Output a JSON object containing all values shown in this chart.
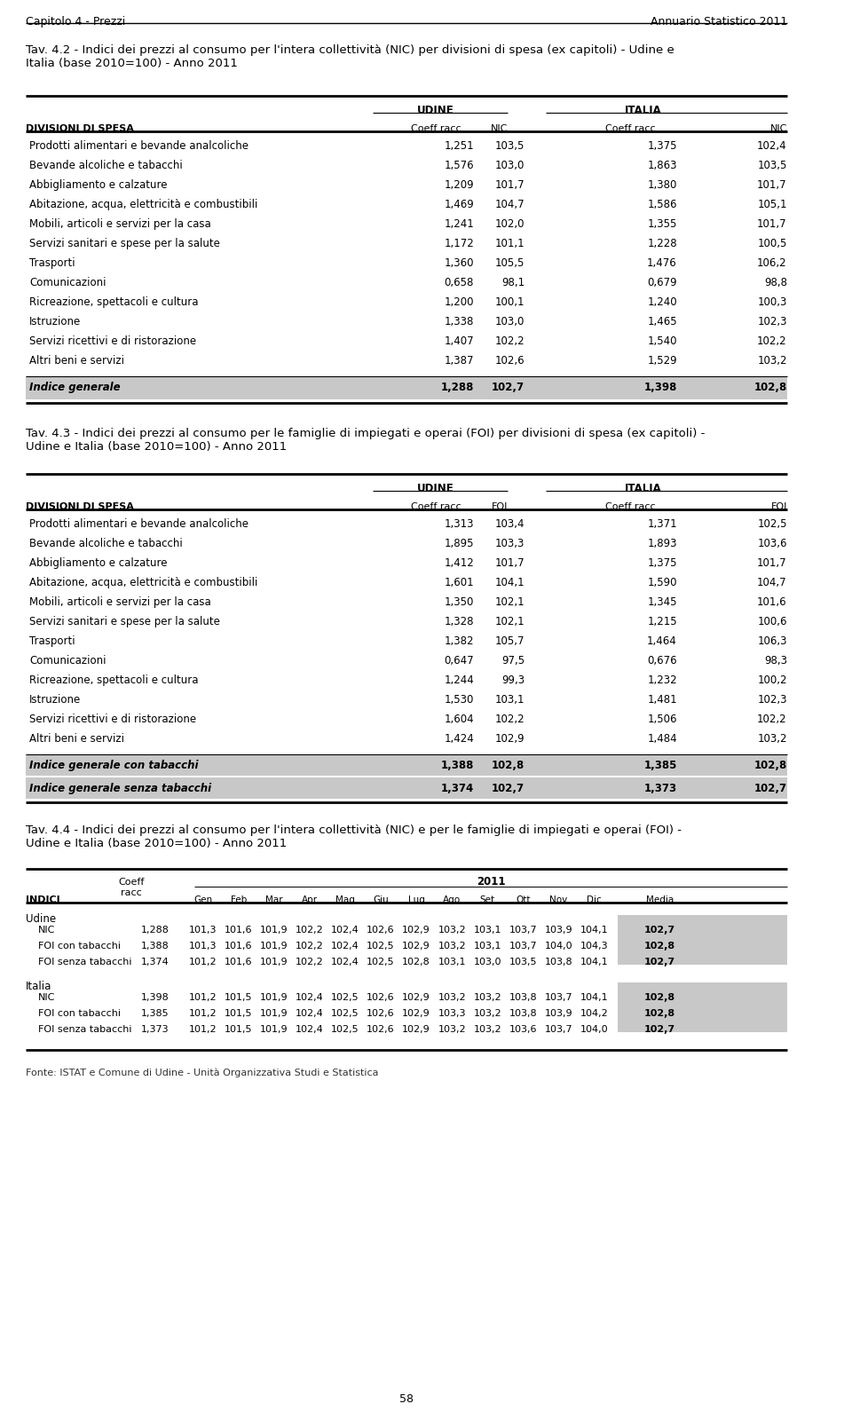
{
  "header_left": "Capitolo 4 - Prezzi",
  "header_right": "Annuario Statistico 2011",
  "page_number": "58",
  "footer": "Fonte: ISTAT e Comune di Udine - Unità Organizzativa Studi e Statistica",
  "tav42_title": "Tav. 4.2 - Indici dei prezzi al consumo per l'intera collettività (NIC) per divisioni di spesa (ex capitoli) - Udine e\nItalia (base 2010=100) - Anno 2011",
  "tav42_col_group1": "UDINE",
  "tav42_col_group2": "ITALIA",
  "tav42_col_div": "DIVISIONI DI SPESA",
  "tav42_col1": "Coeff racc",
  "tav42_col2": "NIC",
  "tav42_col3": "Coeff racc",
  "tav42_col4": "NIC",
  "tav42_rows": [
    [
      "Prodotti alimentari e bevande analcoliche",
      "1,251",
      "103,5",
      "1,375",
      "102,4"
    ],
    [
      "Bevande alcoliche e tabacchi",
      "1,576",
      "103,0",
      "1,863",
      "103,5"
    ],
    [
      "Abbigliamento e calzature",
      "1,209",
      "101,7",
      "1,380",
      "101,7"
    ],
    [
      "Abitazione, acqua, elettricità e combustibili",
      "1,469",
      "104,7",
      "1,586",
      "105,1"
    ],
    [
      "Mobili, articoli e servizi per la casa",
      "1,241",
      "102,0",
      "1,355",
      "101,7"
    ],
    [
      "Servizi sanitari e spese per la salute",
      "1,172",
      "101,1",
      "1,228",
      "100,5"
    ],
    [
      "Trasporti",
      "1,360",
      "105,5",
      "1,476",
      "106,2"
    ],
    [
      "Comunicazioni",
      "0,658",
      "98,1",
      "0,679",
      "98,8"
    ],
    [
      "Ricreazione, spettacoli e cultura",
      "1,200",
      "100,1",
      "1,240",
      "100,3"
    ],
    [
      "Istruzione",
      "1,338",
      "103,0",
      "1,465",
      "102,3"
    ],
    [
      "Servizi ricettivi e di ristorazione",
      "1,407",
      "102,2",
      "1,540",
      "102,2"
    ],
    [
      "Altri beni e servizi",
      "1,387",
      "102,6",
      "1,529",
      "103,2"
    ]
  ],
  "tav42_summary": [
    "Indice generale",
    "1,288",
    "102,7",
    "1,398",
    "102,8"
  ],
  "tav43_title": "Tav. 4.3 - Indici dei prezzi al consumo per le famiglie di impiegati e operai (FOI) per divisioni di spesa (ex capitoli) -\nUdine e Italia (base 2010=100) - Anno 2011",
  "tav43_col_group1": "UDINE",
  "tav43_col_group2": "ITALIA",
  "tav43_col_div": "DIVISIONI DI SPESA",
  "tav43_col1": "Coeff racc",
  "tav43_col2": "FOI",
  "tav43_col3": "Coeff racc",
  "tav43_col4": "FOI",
  "tav43_rows": [
    [
      "Prodotti alimentari e bevande analcoliche",
      "1,313",
      "103,4",
      "1,371",
      "102,5"
    ],
    [
      "Bevande alcoliche e tabacchi",
      "1,895",
      "103,3",
      "1,893",
      "103,6"
    ],
    [
      "Abbigliamento e calzature",
      "1,412",
      "101,7",
      "1,375",
      "101,7"
    ],
    [
      "Abitazione, acqua, elettricità e combustibili",
      "1,601",
      "104,1",
      "1,590",
      "104,7"
    ],
    [
      "Mobili, articoli e servizi per la casa",
      "1,350",
      "102,1",
      "1,345",
      "101,6"
    ],
    [
      "Servizi sanitari e spese per la salute",
      "1,328",
      "102,1",
      "1,215",
      "100,6"
    ],
    [
      "Trasporti",
      "1,382",
      "105,7",
      "1,464",
      "106,3"
    ],
    [
      "Comunicazioni",
      "0,647",
      "97,5",
      "0,676",
      "98,3"
    ],
    [
      "Ricreazione, spettacoli e cultura",
      "1,244",
      "99,3",
      "1,232",
      "100,2"
    ],
    [
      "Istruzione",
      "1,530",
      "103,1",
      "1,481",
      "102,3"
    ],
    [
      "Servizi ricettivi e di ristorazione",
      "1,604",
      "102,2",
      "1,506",
      "102,2"
    ],
    [
      "Altri beni e servizi",
      "1,424",
      "102,9",
      "1,484",
      "103,2"
    ]
  ],
  "tav43_summary1": [
    "Indice generale con tabacchi",
    "1,388",
    "102,8",
    "1,385",
    "102,8"
  ],
  "tav43_summary2": [
    "Indice generale senza tabacchi",
    "1,374",
    "102,7",
    "1,373",
    "102,7"
  ],
  "tav44_title": "Tav. 4.4 - Indici dei prezzi al consumo per l'intera collettività (NIC) e per le famiglie di impiegati e operai (FOI) -\nUdine e Italia (base 2010=100) - Anno 2011",
  "tav44_coeff_header": "Coeff\nracc",
  "tav44_indici_header": "INDICI",
  "tav44_year": "2011",
  "tav44_months": [
    "Gen",
    "Feb",
    "Mar",
    "Apr",
    "Mag",
    "Giu",
    "Lug",
    "Ago",
    "Set",
    "Ott",
    "Nov",
    "Dic",
    "Media"
  ],
  "tav44_section_udine": "Udine",
  "tav44_section_italia": "Italia",
  "tav44_udine_rows": [
    [
      "NIC",
      "1,288",
      "101,3",
      "101,6",
      "101,9",
      "102,2",
      "102,4",
      "102,6",
      "102,9",
      "103,2",
      "103,1",
      "103,7",
      "103,9",
      "104,1",
      "102,7"
    ],
    [
      "FOI con tabacchi",
      "1,388",
      "101,3",
      "101,6",
      "101,9",
      "102,2",
      "102,4",
      "102,5",
      "102,9",
      "103,2",
      "103,1",
      "103,7",
      "104,0",
      "104,3",
      "102,8"
    ],
    [
      "FOI senza tabacchi",
      "1,374",
      "101,2",
      "101,6",
      "101,9",
      "102,2",
      "102,4",
      "102,5",
      "102,8",
      "103,1",
      "103,0",
      "103,5",
      "103,8",
      "104,1",
      "102,7"
    ]
  ],
  "tav44_italia_rows": [
    [
      "NIC",
      "1,398",
      "101,2",
      "101,5",
      "101,9",
      "102,4",
      "102,5",
      "102,6",
      "102,9",
      "103,2",
      "103,2",
      "103,8",
      "103,7",
      "104,1",
      "102,8"
    ],
    [
      "FOI con tabacchi",
      "1,385",
      "101,2",
      "101,5",
      "101,9",
      "102,4",
      "102,5",
      "102,6",
      "102,9",
      "103,3",
      "103,2",
      "103,8",
      "103,9",
      "104,2",
      "102,8"
    ],
    [
      "FOI senza tabacchi",
      "1,373",
      "101,2",
      "101,5",
      "101,9",
      "102,4",
      "102,5",
      "102,6",
      "102,9",
      "103,2",
      "103,2",
      "103,6",
      "103,7",
      "104,0",
      "102,7"
    ]
  ],
  "tav44_highlight_col": "Media",
  "bg_color": "#ffffff",
  "summary_bg": "#c8c8c8",
  "header_line_color": "#000000",
  "text_color": "#000000",
  "highlight_bg": "#d0d0d0"
}
